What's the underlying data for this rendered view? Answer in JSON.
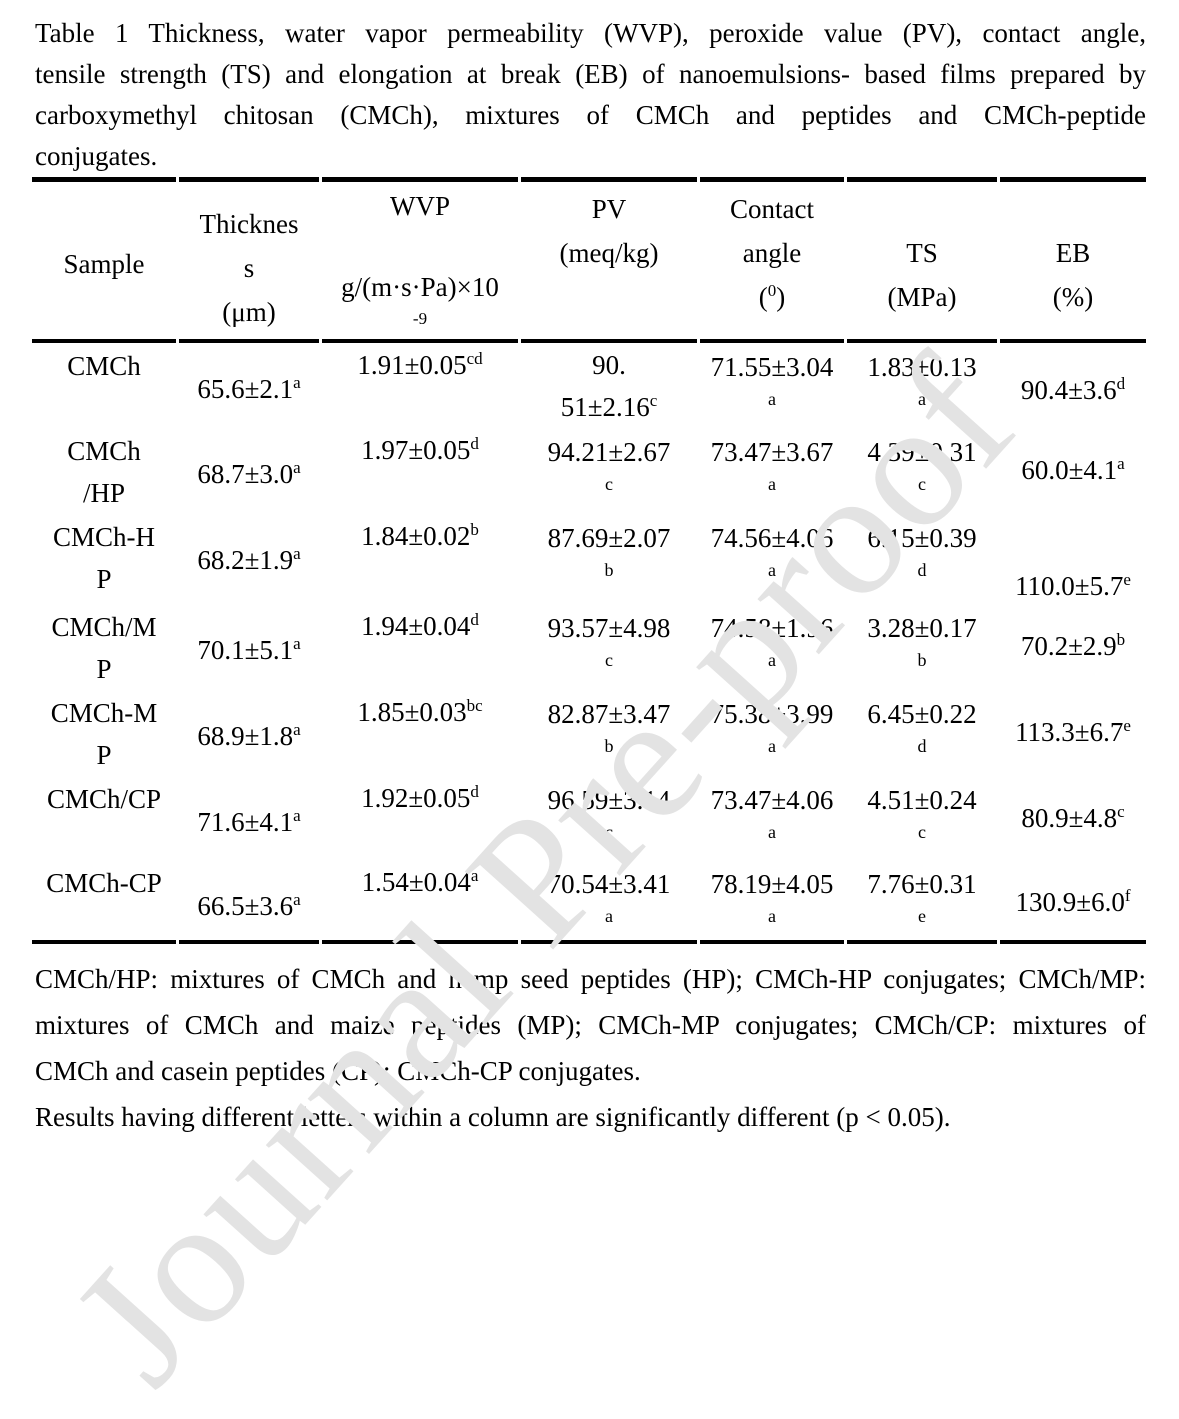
{
  "caption": {
    "lines": [
      "Table 1 Thickness, water vapor permeability (WVP), peroxide value (PV), contact angle,",
      "tensile strength (TS) and elongation at break (EB) of nanoemulsions- based films prepared by",
      "carboxymethyl chitosan (CMCh), mixtures of CMCh and peptides and CMCh-peptide",
      "conjugates."
    ]
  },
  "table": {
    "headers": [
      {
        "id": "sample",
        "lines": [
          "Sample"
        ]
      },
      {
        "id": "thickness",
        "lines": [
          "Thicknes",
          "s",
          "(μm)"
        ]
      },
      {
        "id": "wvp",
        "lines": [
          "WVP"
        ],
        "unit": "g/(m·s·Pa)×10",
        "exp": "-9"
      },
      {
        "id": "pv",
        "lines": [
          "PV",
          "(meq/kg)"
        ]
      },
      {
        "id": "contact",
        "lines": [
          "Contact",
          "angle"
        ],
        "degree": {
          "open": "(",
          "sup": "0",
          "close": ")"
        }
      },
      {
        "id": "ts",
        "lines": [
          "TS",
          "(MPa)"
        ]
      },
      {
        "id": "eb",
        "lines": [
          "EB",
          "(%)"
        ]
      }
    ],
    "rows": [
      {
        "sample": [
          "CMCh"
        ],
        "thickness": {
          "value": "65.6±2.1",
          "sup": "a"
        },
        "wvp": {
          "value": "1.91±0.05",
          "sup": "cd"
        },
        "pv": {
          "lines": [
            "90.",
            "51±2.16"
          ],
          "sup": "c"
        },
        "contact": {
          "value": "71.55±3.04",
          "sup": "a"
        },
        "ts": {
          "value": "1.83±0.13",
          "sup": "a"
        },
        "eb": {
          "value": "90.4±3.6",
          "sup": "d"
        }
      },
      {
        "sample": [
          "CMCh",
          "/HP"
        ],
        "thickness": {
          "value": "68.7±3.0",
          "sup": "a"
        },
        "wvp": {
          "value": "1.97±0.05",
          "sup": "d"
        },
        "pv": {
          "value": "94.21±2.67",
          "sup": "c"
        },
        "contact": {
          "value": "73.47±3.67",
          "sup": "a"
        },
        "ts": {
          "value": "4.39±0.31",
          "sup": "c"
        },
        "eb": {
          "value": "60.0±4.1",
          "sup": "a"
        }
      },
      {
        "sample": [
          "CMCh-H",
          "P"
        ],
        "thickness": {
          "value": "68.2±1.9",
          "sup": "a"
        },
        "wvp": {
          "value": "1.84±0.02",
          "sup": "b"
        },
        "pv": {
          "value": "87.69±2.07",
          "sup": "b"
        },
        "contact": {
          "value": "74.56±4.06",
          "sup": "a"
        },
        "ts": {
          "value": "6.15±0.39",
          "sup": "d"
        },
        "eb": {
          "value": "110.0±5.7",
          "sup": "e"
        }
      },
      {
        "sample": [
          "CMCh/M",
          "P"
        ],
        "thickness": {
          "value": "70.1±5.1",
          "sup": "a"
        },
        "wvp": {
          "value": "1.94±0.04",
          "sup": "d"
        },
        "pv": {
          "value": "93.57±4.98",
          "sup": "c"
        },
        "contact": {
          "value": "74.58±1.96",
          "sup": "a"
        },
        "ts": {
          "value": "3.28±0.17",
          "sup": "b"
        },
        "eb": {
          "value": "70.2±2.9",
          "sup": "b"
        }
      },
      {
        "sample": [
          "CMCh-M",
          "P"
        ],
        "thickness": {
          "value": "68.9±1.8",
          "sup": "a"
        },
        "wvp": {
          "value": "1.85±0.03",
          "sup": "bc"
        },
        "pv": {
          "value": "82.87±3.47",
          "sup": "b"
        },
        "contact": {
          "value": "75.38±3.99",
          "sup": "a"
        },
        "ts": {
          "value": "6.45±0.22",
          "sup": "d"
        },
        "eb": {
          "value": "113.3±6.7",
          "sup": "e"
        }
      },
      {
        "sample": [
          "CMCh/CP"
        ],
        "thickness": {
          "value": "71.6±4.1",
          "sup": "a"
        },
        "wvp": {
          "value": "1.92±0.05",
          "sup": "d"
        },
        "pv": {
          "value": "96.59±3.14",
          "sup": "c"
        },
        "contact": {
          "value": "73.47±4.06",
          "sup": "a"
        },
        "ts": {
          "value": "4.51±0.24",
          "sup": "c"
        },
        "eb": {
          "value": "80.9±4.8",
          "sup": "c"
        }
      },
      {
        "sample": [
          "CMCh-CP"
        ],
        "thickness": {
          "value": "66.5±3.6",
          "sup": "a"
        },
        "wvp": {
          "value": "1.54±0.04",
          "sup": "a"
        },
        "pv": {
          "value": "70.54±3.41",
          "sup": "a"
        },
        "contact": {
          "value": "78.19±4.05",
          "sup": "a"
        },
        "ts": {
          "value": "7.76±0.31",
          "sup": "e"
        },
        "eb": {
          "value": "130.9±6.0",
          "sup": "f"
        }
      }
    ]
  },
  "footnotes": {
    "lines": [
      "CMCh/HP: mixtures of CMCh and hemp seed peptides (HP); CMCh-HP conjugates; CMCh/MP:",
      "mixtures of CMCh and maize peptides (MP); CMCh-MP conjugates; CMCh/CP: mixtures of",
      "CMCh and casein peptides (CP); CMCh-CP conjugates.",
      "Results having different letters within a column are significantly different (p < 0.05)."
    ]
  },
  "watermark": {
    "text": "Journal Pre-proof",
    "color": "#e3e3e3"
  }
}
